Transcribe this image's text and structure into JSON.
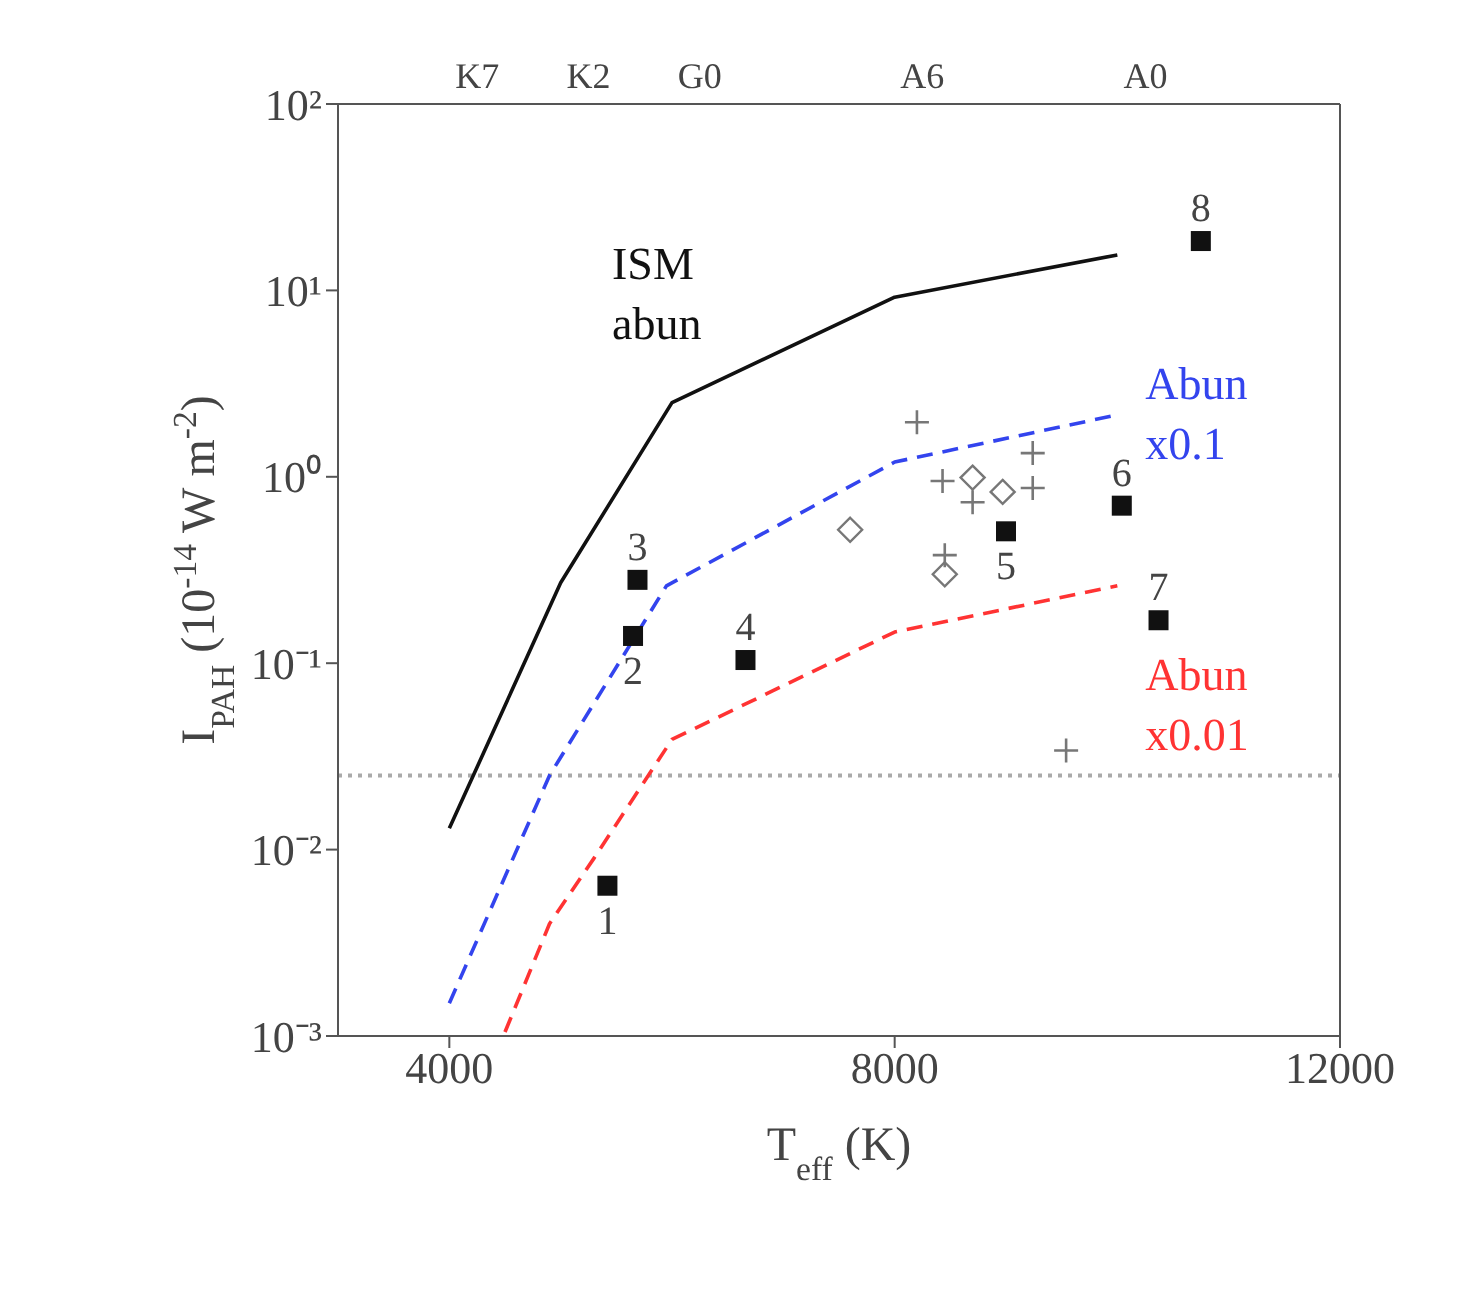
{
  "chart_data": {
    "type": "line",
    "xlabel": "T$_{eff}$ (K)",
    "ylabel": "I$_{PAH}$ (10$^{-14}$ W m$^{-2}$)",
    "xlim": [
      3000,
      12000
    ],
    "xticks": [
      4000,
      8000,
      12000
    ],
    "ylim": [
      0.001,
      100
    ],
    "yticks": [
      {
        "value": 0.001,
        "label": "10⁻³"
      },
      {
        "value": 0.01,
        "label": "10⁻²"
      },
      {
        "value": 0.1,
        "label": "10⁻¹"
      },
      {
        "value": 1,
        "label": "10⁰"
      },
      {
        "value": 10,
        "label": "10¹"
      },
      {
        "value": 100,
        "label": "10²"
      }
    ],
    "log": "y",
    "series": [
      {
        "name": "ISM abun",
        "type": "line",
        "color": "#111111",
        "line_style": "solid",
        "x": [
          4000,
          5000,
          6000,
          8000,
          10000
        ],
        "values": [
          0.013,
          0.27,
          2.5,
          9.2,
          15.5
        ]
      },
      {
        "name": "Abun x0.1",
        "type": "line",
        "color": "#3344ee",
        "line_style": "dashed",
        "x": [
          4000,
          4900,
          5950,
          8000,
          10000
        ],
        "values": [
          0.0015,
          0.025,
          0.26,
          1.2,
          2.15
        ]
      },
      {
        "name": "Abun x0.01",
        "type": "line",
        "color": "#ff3333",
        "line_style": "dashed",
        "x": [
          4500,
          4900,
          5300,
          6000,
          8000,
          10000
        ],
        "values": [
          0.00105,
          0.004,
          0.009,
          0.039,
          0.147,
          0.26
        ]
      },
      {
        "type": "scatter",
        "marker": "square",
        "color": "#111111",
        "x": [
          5420,
          5650,
          5690,
          6660,
          9000,
          10040,
          10370,
          10750
        ],
        "values": [
          0.0064,
          0.14,
          0.28,
          0.104,
          0.51,
          0.7,
          0.17,
          18.4
        ]
      },
      {
        "type": "scatter",
        "marker": "diamond",
        "color": "#777777",
        "x": [
          7600,
          8700,
          8970,
          8450
        ],
        "values": [
          0.52,
          0.99,
          0.83,
          0.3
        ]
      },
      {
        "type": "scatter",
        "marker": "cross",
        "color": "#777777",
        "x": [
          8200,
          8430,
          9240,
          9240,
          8700,
          8450,
          9540
        ],
        "values": [
          1.96,
          0.95,
          1.34,
          0.87,
          0.73,
          0.38,
          0.034
        ]
      }
    ],
    "ref_lines": [
      {
        "axis": "y",
        "value": 0.025,
        "color": "#aaaaaa",
        "line_style": "dotted"
      }
    ],
    "annotations": [
      {
        "text": "1",
        "x": 5420,
        "y": 0.0064
      },
      {
        "text": "2",
        "x": 5650,
        "y": 0.14
      },
      {
        "text": "3",
        "x": 5690,
        "y": 0.28
      },
      {
        "text": "4",
        "x": 6660,
        "y": 0.104
      },
      {
        "text": "5",
        "x": 9000,
        "y": 0.51
      },
      {
        "text": "6",
        "x": 10040,
        "y": 0.7
      },
      {
        "text": "7",
        "x": 10370,
        "y": 0.17
      },
      {
        "text": "8",
        "x": 10750,
        "y": 18.4
      },
      "K7",
      "K2",
      "G0",
      "A6",
      "A0"
    ]
  }
}
